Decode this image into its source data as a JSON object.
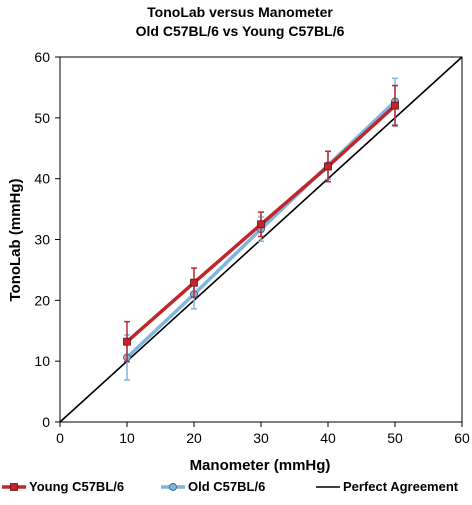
{
  "chart_data": {
    "type": "line",
    "title_line1": "TonoLab versus Manometer",
    "title_line2": "Old C57BL/6 vs Young C57BL/6",
    "xlabel": "Manometer (mmHg)",
    "ylabel": "TonoLab (mmHg)",
    "xlim": [
      0,
      60
    ],
    "ylim": [
      0,
      60
    ],
    "xticks": [
      "0",
      "10",
      "20",
      "30",
      "40",
      "50",
      "60"
    ],
    "yticks": [
      "0",
      "10",
      "20",
      "30",
      "40",
      "50",
      "60"
    ],
    "grid": false,
    "legend_position": "bottom",
    "series": [
      {
        "name": "Young C57BL/6",
        "color": "#c0272d",
        "marker": "square",
        "x": [
          10,
          20,
          30,
          40,
          50
        ],
        "y": [
          13.2,
          22.9,
          32.5,
          42.0,
          52.0
        ],
        "err": [
          3.3,
          2.4,
          2.0,
          2.5,
          3.3
        ]
      },
      {
        "name": "Old C57BL/6",
        "color": "#7fb6e0",
        "marker": "circle",
        "x": [
          10,
          20,
          30,
          40,
          50
        ],
        "y": [
          10.6,
          21.0,
          31.7,
          42.2,
          52.7
        ],
        "err": [
          3.7,
          2.4,
          2.0,
          2.3,
          3.8
        ]
      },
      {
        "name": "Perfect Agreement",
        "color": "#000000",
        "marker": "none",
        "x": [
          0,
          60
        ],
        "y": [
          0,
          60
        ]
      }
    ]
  }
}
